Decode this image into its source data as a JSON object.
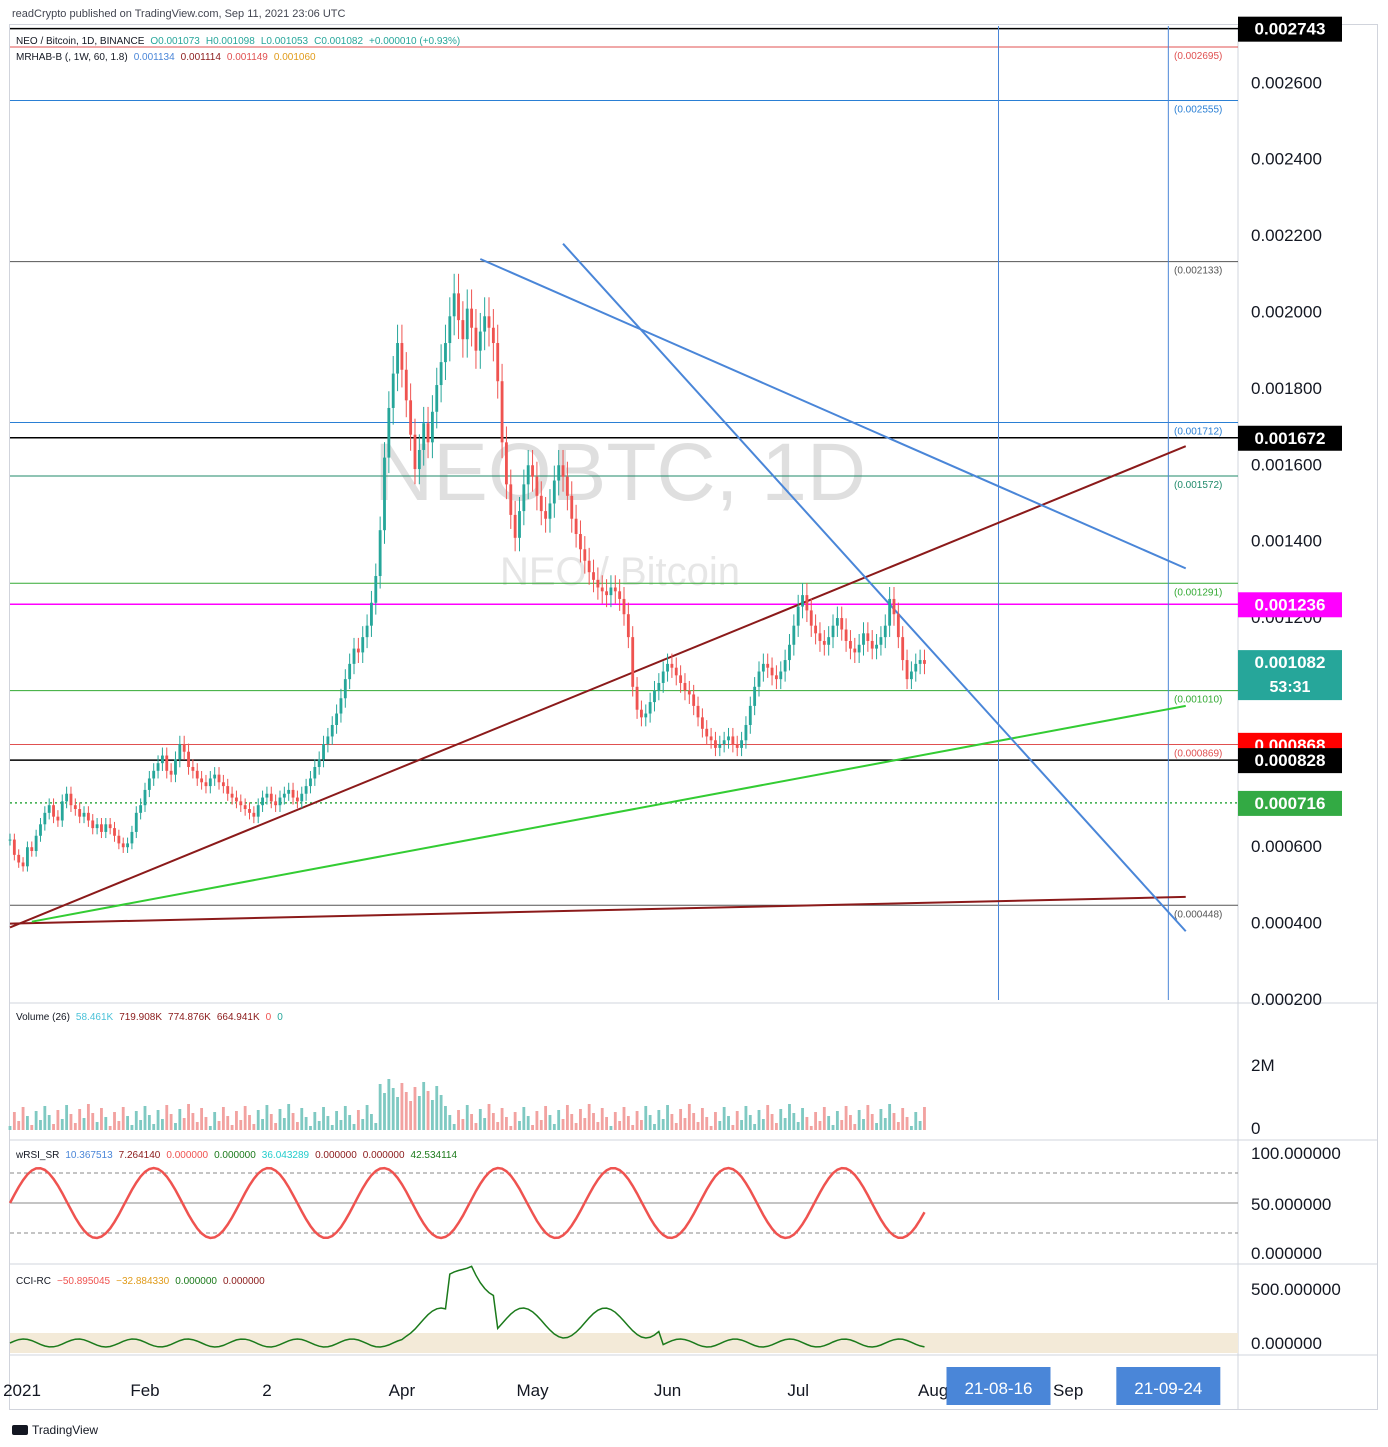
{
  "header": {
    "credit": "readCrypto published on TradingView.com, Sep 11, 2021 23:06 UTC",
    "watermark_symbol": "NEOBTC, 1D",
    "watermark_pair": "NEO / Bitcoin"
  },
  "legend_main": {
    "symbol": "NEO / Bitcoin, 1D, BINANCE",
    "open": "O0.001073",
    "high": "H0.001098",
    "low": "L0.001053",
    "close": "C0.001082",
    "change": "+0.000010 (+0.93%)"
  },
  "legend_indicator": {
    "name": "MRHAB-B (, 1W, 60, 1.8)",
    "v1": "0.001134",
    "v2": "0.001114",
    "v3": "0.001149",
    "v4": "0.001060"
  },
  "legend_volume": {
    "name": "Volume (26)",
    "v1": "58.461K",
    "v2": "719.908K",
    "v3": "774.876K",
    "v4": "664.941K",
    "v5": "0",
    "v6": "0"
  },
  "legend_wrsi": {
    "name": "wRSI_SR",
    "v1": "10.367513",
    "v2": "7.264140",
    "v3": "0.000000",
    "v4": "0.000000",
    "v5": "36.043289",
    "v6": "0.000000",
    "v7": "0.000000",
    "v8": "42.534114"
  },
  "legend_cci": {
    "name": "CCI-RC",
    "v1": "−50.895045",
    "v2": "−32.884330",
    "v3": "0.000000",
    "v4": "0.000000"
  },
  "colors": {
    "candle_up": "#26a69a",
    "candle_down": "#ef5350",
    "axis_text": "#131722",
    "blue": "#4a86d8",
    "darkred": "#8b1a1a",
    "green_line": "#33cc33",
    "orange": "#f5b942"
  },
  "chart_data": {
    "type": "candlestick",
    "price_axis": {
      "ticks": [
        "0.002600",
        "0.002400",
        "0.002200",
        "0.002000",
        "0.001800",
        "0.001600",
        "0.001400",
        "0.001200",
        "0.000600",
        "0.000400",
        "0.000200"
      ],
      "ylim": [
        0.0002,
        0.00275
      ]
    },
    "price_badges": [
      {
        "label": "0.002743",
        "value": 0.002743,
        "bg": "#000000",
        "fg": "#ffffff"
      },
      {
        "label": "0.001672",
        "value": 0.001672,
        "bg": "#000000",
        "fg": "#ffffff"
      },
      {
        "label": "0.001236",
        "value": 0.001236,
        "bg": "#ff00ff",
        "fg": "#ffffff"
      },
      {
        "label": "0.001082",
        "sub": "53:31",
        "value": 0.001082,
        "bg": "#26a69a",
        "fg": "#ffffff"
      },
      {
        "label": "0.000868",
        "value": 0.000868,
        "bg": "#ff0000",
        "fg": "#ffffff"
      },
      {
        "label": "0.000828",
        "value": 0.000828,
        "bg": "#000000",
        "fg": "#ffffff"
      },
      {
        "label": "0.000716",
        "value": 0.000716,
        "bg": "#33aa44",
        "fg": "#ffffff"
      }
    ],
    "horizontal_levels": [
      {
        "label": "(0.002695)",
        "value": 0.002695,
        "color": "#e05050"
      },
      {
        "label": "(0.002555)",
        "value": 0.002555,
        "color": "#2a7fd4"
      },
      {
        "label": "(0.002133)",
        "value": 0.002133,
        "color": "#555555"
      },
      {
        "label": "(0.001712)",
        "value": 0.001712,
        "color": "#2a7fd4"
      },
      {
        "label": "(0.001572)",
        "value": 0.001572,
        "color": "#1f8a6a"
      },
      {
        "label": "(0.001291)",
        "value": 0.001291,
        "color": "#33aa33"
      },
      {
        "label": "(0.001010)",
        "value": 0.00101,
        "color": "#33aa33"
      },
      {
        "label": "(0.000869)",
        "value": 0.000869,
        "color": "#e05050"
      },
      {
        "label": "(0.000448)",
        "value": 0.000448,
        "color": "#555555"
      }
    ],
    "extra_levels": [
      {
        "value": 0.002743,
        "color": "#000000"
      },
      {
        "value": 0.001672,
        "color": "#000000"
      },
      {
        "value": 0.001236,
        "color": "#ff00ff"
      },
      {
        "value": 0.000828,
        "color": "#000000"
      },
      {
        "value": 0.000716,
        "color": "#33aa44"
      }
    ],
    "x_axis": {
      "ticks": [
        "2021",
        "Feb",
        "2",
        "Apr",
        "May",
        "Jun",
        "Jul",
        "Aug",
        "Sep"
      ],
      "highlight_ticks": [
        "21-08-16",
        "21-09-24"
      ]
    },
    "candles": {
      "start": "2021-01-01",
      "close": [
        0.00062,
        0.00058,
        0.00056,
        0.00055,
        0.0006,
        0.00059,
        0.00063,
        0.00066,
        0.00069,
        0.00071,
        0.00068,
        0.00067,
        0.00072,
        0.00074,
        0.00071,
        0.0007,
        0.00068,
        0.00069,
        0.00067,
        0.00065,
        0.00066,
        0.00064,
        0.00066,
        0.00065,
        0.00063,
        0.00061,
        0.0006,
        0.00061,
        0.00064,
        0.00069,
        0.00071,
        0.00075,
        0.00078,
        0.0008,
        0.00082,
        0.00084,
        0.0008,
        0.00079,
        0.00083,
        0.00087,
        0.00085,
        0.00081,
        0.0008,
        0.00078,
        0.00077,
        0.00076,
        0.00078,
        0.00079,
        0.00077,
        0.00076,
        0.00074,
        0.00073,
        0.00072,
        0.00071,
        0.0007,
        0.00069,
        0.00068,
        0.00071,
        0.00073,
        0.00074,
        0.00072,
        0.00071,
        0.00073,
        0.00074,
        0.00075,
        0.00073,
        0.00072,
        0.00074,
        0.00076,
        0.00078,
        0.00081,
        0.00083,
        0.00087,
        0.00089,
        0.00092,
        0.00095,
        0.00099,
        0.00104,
        0.00108,
        0.00112,
        0.00111,
        0.00115,
        0.00118,
        0.00124,
        0.00131,
        0.00143,
        0.00162,
        0.00175,
        0.00184,
        0.00192,
        0.00185,
        0.00177,
        0.00168,
        0.00159,
        0.00164,
        0.00171,
        0.00166,
        0.00174,
        0.00181,
        0.00187,
        0.00192,
        0.00199,
        0.00205,
        0.00198,
        0.00193,
        0.00201,
        0.00196,
        0.0019,
        0.00195,
        0.00199,
        0.00196,
        0.00192,
        0.00182,
        0.00166,
        0.00155,
        0.00147,
        0.00141,
        0.00148,
        0.00155,
        0.0016,
        0.00157,
        0.00152,
        0.00148,
        0.00146,
        0.0015,
        0.00156,
        0.0016,
        0.00157,
        0.00152,
        0.00146,
        0.00142,
        0.00138,
        0.00135,
        0.00132,
        0.0013,
        0.00128,
        0.00127,
        0.00126,
        0.00128,
        0.00127,
        0.00125,
        0.00121,
        0.00115,
        0.00102,
        0.00096,
        0.00094,
        0.00095,
        0.00098,
        0.00101,
        0.00103,
        0.00106,
        0.00108,
        0.00107,
        0.00105,
        0.00103,
        0.00101,
        0.001,
        0.00097,
        0.00094,
        0.00091,
        0.00089,
        0.00088,
        0.00086,
        0.00087,
        0.00088,
        0.00089,
        0.00087,
        0.00086,
        0.00088,
        0.00092,
        0.00097,
        0.00102,
        0.00106,
        0.00108,
        0.00107,
        0.00105,
        0.00104,
        0.00106,
        0.00109,
        0.00113,
        0.00118,
        0.00123,
        0.00126,
        0.00122,
        0.00118,
        0.00116,
        0.00114,
        0.00113,
        0.00115,
        0.00118,
        0.0012,
        0.00117,
        0.00114,
        0.00112,
        0.00111,
        0.00113,
        0.00116,
        0.00114,
        0.00112,
        0.00113,
        0.00115,
        0.00118,
        0.00125,
        0.00121,
        0.00115,
        0.00109,
        0.00104,
        0.00106,
        0.00108,
        0.00109,
        0.00108
      ]
    },
    "trendlines": [
      {
        "name": "",
        "color": "#8b1a1a",
        "points": [
          [
            "2021-01-01",
            0.00039
          ],
          [
            "2021-09-28",
            0.00165
          ]
        ]
      },
      {
        "name": "",
        "color": "#8b1a1a",
        "points": [
          [
            "2021-01-01",
            0.0004
          ],
          [
            "2021-09-28",
            0.00047
          ]
        ]
      },
      {
        "name": "",
        "color": "#33cc33",
        "points": [
          [
            "2021-01-06",
            0.000405
          ],
          [
            "2021-09-28",
            0.00097
          ]
        ]
      },
      {
        "name": "",
        "color": "#4a86d8",
        "points": [
          [
            "2021-04-19",
            0.00214
          ],
          [
            "2021-09-28",
            0.00133
          ]
        ]
      },
      {
        "name": "",
        "color": "#4a86d8",
        "points": [
          [
            "2021-05-08",
            0.00218
          ],
          [
            "2021-09-28",
            0.00038
          ]
        ]
      }
    ],
    "vertical_markers": [
      "2021-08-16",
      "2021-09-24"
    ],
    "volume": {
      "label": "Volume (26)",
      "ticks": [
        "2M",
        "0"
      ]
    },
    "wrsi": {
      "ticks": [
        "100.000000",
        "50.000000",
        "0.000000"
      ]
    },
    "cci": {
      "ticks": [
        "500.000000",
        "0.000000"
      ]
    }
  }
}
